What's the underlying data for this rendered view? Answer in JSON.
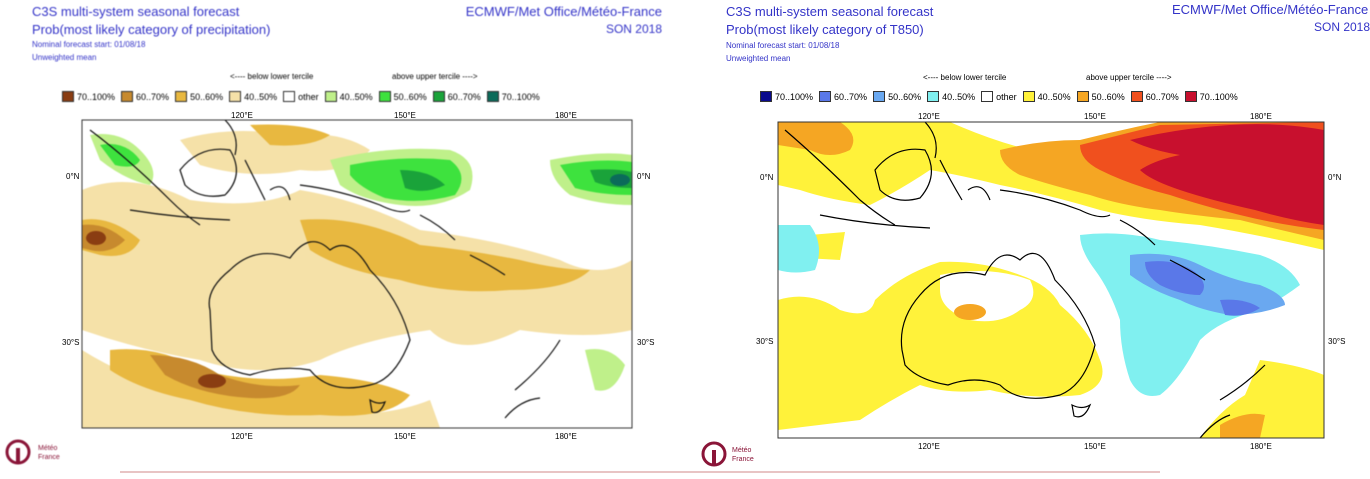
{
  "left_panel": {
    "title": "C3S multi-system seasonal forecast",
    "subtitle": "Prob(most likely category of precipitation)",
    "start": "Nominal forecast start: 01/08/18",
    "mean": "Unweighted mean",
    "provider": "ECMWF/Met Office/Météo-France",
    "season": "SON 2018",
    "below_label": "<---- below lower tercile",
    "above_label": "above upper tercile ---->",
    "legend": [
      {
        "label": "70..100%",
        "color": "#8a3d12"
      },
      {
        "label": "60..70%",
        "color": "#c78a2e"
      },
      {
        "label": "50..60%",
        "color": "#e8b840"
      },
      {
        "label": "40..50%",
        "color": "#f5e1a8"
      },
      {
        "label": "other",
        "color": "#ffffff"
      },
      {
        "label": "40..50%",
        "color": "#bff08a"
      },
      {
        "label": "50..60%",
        "color": "#3ee23e"
      },
      {
        "label": "60..70%",
        "color": "#1aa33a"
      },
      {
        "label": "70..100%",
        "color": "#0b6b5a"
      }
    ],
    "axes": {
      "top": [
        "120°E",
        "150°E",
        "180°E"
      ],
      "bottom": [
        "120°E",
        "150°E",
        "180°E"
      ],
      "left": [
        "0°N",
        "30°S"
      ],
      "right": [
        "0°N",
        "30°S"
      ]
    }
  },
  "right_panel": {
    "title": "C3S multi-system seasonal forecast",
    "subtitle": "Prob(most likely category of T850)",
    "start": "Nominal forecast start: 01/08/18",
    "mean": "Unweighted mean",
    "provider": "ECMWF/Met Office/Météo-France",
    "season": "SON 2018",
    "below_label": "<---- below lower tercile",
    "above_label": "above upper tercile ---->",
    "legend": [
      {
        "label": "70..100%",
        "color": "#0a0a8c"
      },
      {
        "label": "60..70%",
        "color": "#5a78e8"
      },
      {
        "label": "50..60%",
        "color": "#6aa8f0"
      },
      {
        "label": "40..50%",
        "color": "#80f0f0"
      },
      {
        "label": "other",
        "color": "#ffffff"
      },
      {
        "label": "40..50%",
        "color": "#fff23a"
      },
      {
        "label": "50..60%",
        "color": "#f5a623"
      },
      {
        "label": "60..70%",
        "color": "#f0501e"
      },
      {
        "label": "70..100%",
        "color": "#c8102e"
      }
    ],
    "axes": {
      "top": [
        "120°E",
        "150°E",
        "180°E"
      ],
      "bottom": [
        "120°E",
        "150°E",
        "180°E"
      ],
      "left": [
        "0°N",
        "30°S"
      ],
      "right": [
        "0°N",
        "30°S"
      ]
    }
  },
  "logo": {
    "name": "Météo France",
    "line1": "Météo",
    "line2": "France",
    "color": "#8a1538"
  }
}
